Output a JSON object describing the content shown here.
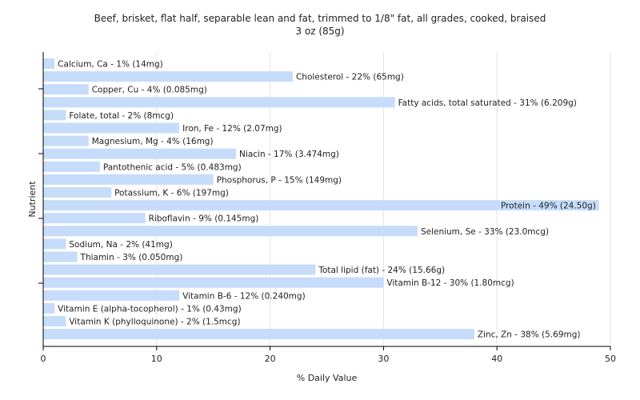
{
  "chart_data": {
    "type": "bar",
    "orientation": "horizontal",
    "title": "Beef, brisket, flat half, separable lean and fat, trimmed to 1/8\" fat, all grades, cooked, braised",
    "subtitle": "3 oz (85g)",
    "xlabel": "% Daily Value",
    "ylabel": "Nutrient",
    "xlim": [
      0,
      50
    ],
    "xticks": [
      0,
      10,
      20,
      30,
      40,
      50
    ],
    "grid": true,
    "bar_color": "#c6dcfa",
    "categories": [
      "Calcium, Ca",
      "Cholesterol",
      "Copper, Cu",
      "Fatty acids, total saturated",
      "Folate, total",
      "Iron, Fe",
      "Magnesium, Mg",
      "Niacin",
      "Pantothenic acid",
      "Phosphorus, P",
      "Potassium, K",
      "Protein",
      "Riboflavin",
      "Selenium, Se",
      "Sodium, Na",
      "Thiamin",
      "Total lipid (fat)",
      "Vitamin B-12",
      "Vitamin B-6",
      "Vitamin E (alpha-tocopherol)",
      "Vitamin K (phylloquinone)",
      "Zinc, Zn"
    ],
    "values": [
      1,
      22,
      4,
      31,
      2,
      12,
      4,
      17,
      5,
      15,
      6,
      49,
      9,
      33,
      2,
      3,
      24,
      30,
      12,
      1,
      2,
      38
    ],
    "labels": [
      "Calcium, Ca - 1% (14mg)",
      "Cholesterol - 22% (65mg)",
      "Copper, Cu - 4% (0.085mg)",
      "Fatty acids, total saturated - 31% (6.209g)",
      "Folate, total - 2% (8mcg)",
      "Iron, Fe - 12% (2.07mg)",
      "Magnesium, Mg - 4% (16mg)",
      "Niacin - 17% (3.474mg)",
      "Pantothenic acid - 5% (0.483mg)",
      "Phosphorus, P - 15% (149mg)",
      "Potassium, K - 6% (197mg)",
      "Protein - 49% (24.50g)",
      "Riboflavin - 9% (0.145mg)",
      "Selenium, Se - 33% (23.0mcg)",
      "Sodium, Na - 2% (41mg)",
      "Thiamin - 3% (0.050mg)",
      "Total lipid (fat) - 24% (15.66g)",
      "Vitamin B-12 - 30% (1.80mcg)",
      "Vitamin B-6 - 12% (0.240mg)",
      "Vitamin E (alpha-tocopherol) - 1% (0.43mg)",
      "Vitamin K (phylloquinone) - 2% (1.5mcg)",
      "Zinc, Zn - 38% (5.69mg)"
    ]
  }
}
